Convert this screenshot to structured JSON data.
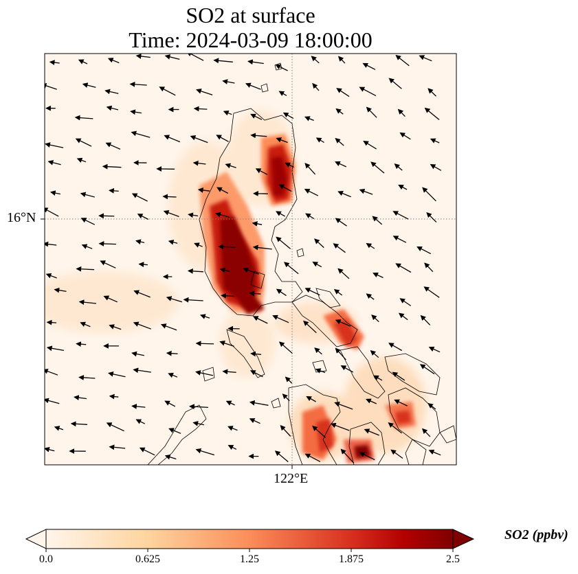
{
  "title_line1": "SO2 at surface",
  "title_line2": "Time: 2024-03-09 18:00:00",
  "axes": {
    "lat_tick_label": "16°N",
    "lon_tick_label": "122°E"
  },
  "colorbar": {
    "label": "SO2 (ppbv)",
    "ticks": [
      "0.0",
      "0.625",
      "1.25",
      "1.875",
      "2.5"
    ],
    "range": [
      0.0,
      2.5
    ],
    "colormap": [
      "#fff5eb",
      "#fdd49e",
      "#fc8d59",
      "#d7301f",
      "#b30000",
      "#7f0000"
    ],
    "extend": "both"
  },
  "map": {
    "region": "Philippines (Luzon and Visayas)",
    "background_color": "#fff5eb",
    "gridlines": "dotted",
    "wind_vectors": "shown"
  }
}
